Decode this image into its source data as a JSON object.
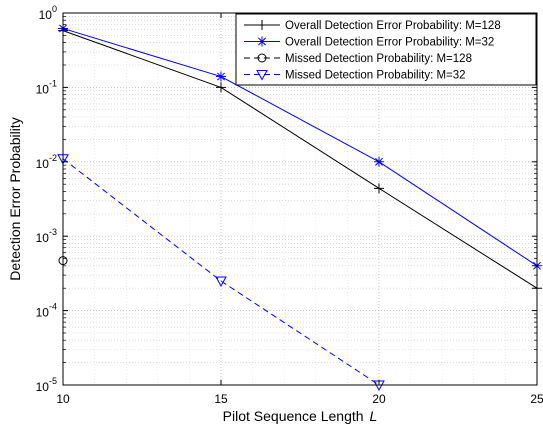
{
  "chart_data": {
    "type": "line",
    "xlabel": "Pilot Sequence Length",
    "xlabel_italic": "L",
    "ylabel": "Detection Error Probability",
    "x": [
      10,
      15,
      20,
      25
    ],
    "x_ticks": [
      "10",
      "15",
      "20",
      "25"
    ],
    "xlim": [
      10,
      25
    ],
    "ylim": [
      1e-05,
      1
    ],
    "y_scale": "log",
    "y_ticks": [
      {
        "value": 1,
        "base": "10",
        "exp": "0"
      },
      {
        "value": 0.1,
        "base": "10",
        "exp": "-1"
      },
      {
        "value": 0.01,
        "base": "10",
        "exp": "-2"
      },
      {
        "value": 0.001,
        "base": "10",
        "exp": "-3"
      },
      {
        "value": 0.0001,
        "base": "10",
        "exp": "-4"
      },
      {
        "value": 1e-05,
        "base": "10",
        "exp": "-5"
      }
    ],
    "grid": true,
    "legend_position": "top-right",
    "series": [
      {
        "name": "Overall Detection Error Probability: M=128",
        "color": "#000000",
        "line": "solid",
        "marker": "plus",
        "points": [
          [
            10,
            0.58
          ],
          [
            15,
            0.1
          ],
          [
            20,
            0.0044
          ],
          [
            25,
            0.0002
          ]
        ]
      },
      {
        "name": "Overall Detection Error Probability: M=32",
        "color": "#0000ff",
        "line": "solid",
        "marker": "star",
        "points": [
          [
            10,
            0.62
          ],
          [
            15,
            0.14
          ],
          [
            20,
            0.01
          ],
          [
            25,
            0.0004
          ]
        ]
      },
      {
        "name": "Missed Detection Probability: M=128",
        "color": "#000000",
        "line": "dashed",
        "marker": "circle",
        "points": [
          [
            10,
            0.00047
          ]
        ]
      },
      {
        "name": "Missed Detection Probability: M=32",
        "color": "#0000ff",
        "line": "dashed",
        "marker": "triangle-down",
        "points": [
          [
            10,
            0.011
          ],
          [
            15,
            0.00025
          ],
          [
            20,
            1e-05
          ]
        ]
      }
    ]
  }
}
